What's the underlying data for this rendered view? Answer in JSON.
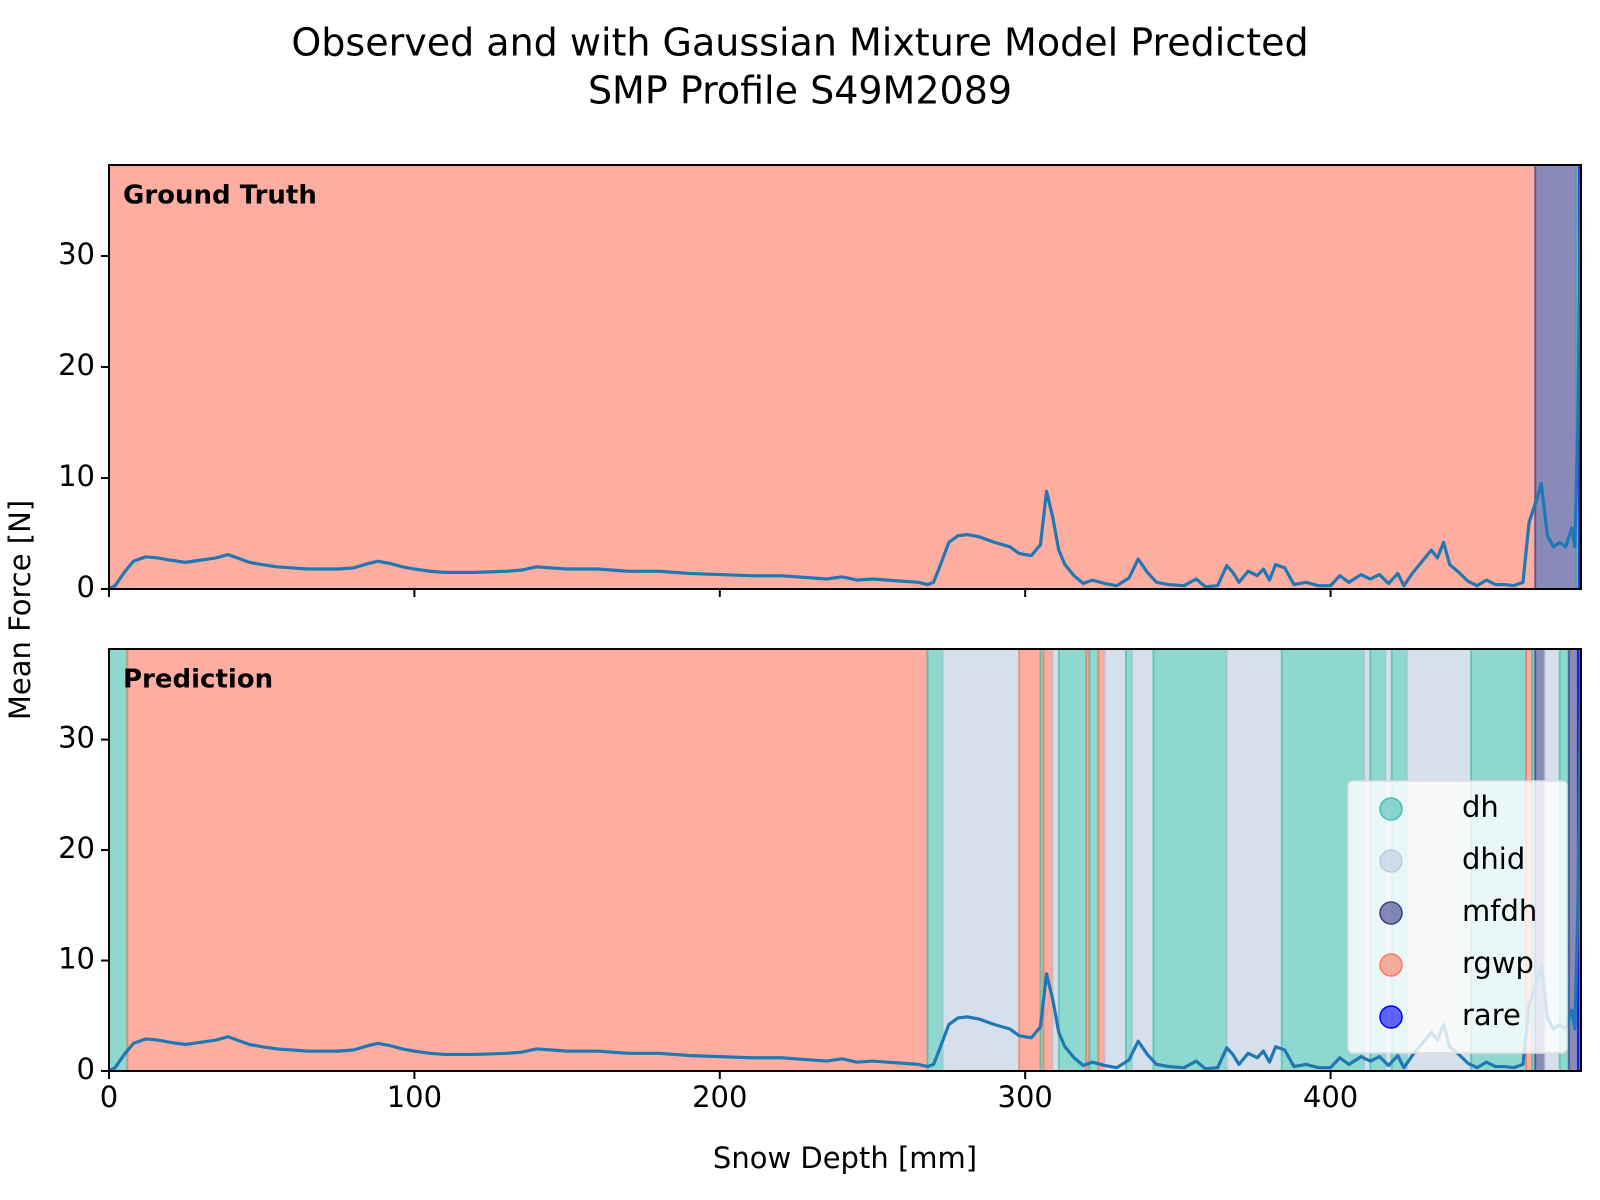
{
  "chart_data": {
    "type": "line",
    "title": "Observed and with Gaussian Mixture Model Predicted",
    "subtitle": "SMP Profile S49M2089",
    "x_label": "Snow Depth [mm]",
    "y_label": "Mean Force [N]",
    "xlim": [
      0,
      482
    ],
    "xticks": [
      0,
      100,
      200,
      300,
      400
    ],
    "ylim": [
      0,
      38.2
    ],
    "yticks": [
      0,
      10,
      20,
      30
    ],
    "legend_position": "lower right",
    "classes": [
      {
        "name": "dh",
        "color": "#44beb1"
      },
      {
        "name": "dhid",
        "color": "#bbcbdf"
      },
      {
        "name": "mfdh",
        "color": "#3c3c89"
      },
      {
        "name": "rgwp",
        "color": "#fc7861"
      },
      {
        "name": "rare",
        "color": "#0000ff"
      }
    ],
    "panels": [
      {
        "label": "Ground Truth",
        "spans": [
          {
            "class": "rgwp",
            "start": 0,
            "end": 467
          },
          {
            "class": "mfdh",
            "start": 467,
            "end": 480.5
          },
          {
            "class": "dh",
            "start": 480.5,
            "end": 481.3
          },
          {
            "class": "rare",
            "start": 481.3,
            "end": 482
          }
        ]
      },
      {
        "label": "Prediction",
        "spans": [
          {
            "class": "dh",
            "start": 0,
            "end": 6
          },
          {
            "class": "rgwp",
            "start": 6,
            "end": 268
          },
          {
            "class": "dh",
            "start": 268,
            "end": 273
          },
          {
            "class": "dhid",
            "start": 273,
            "end": 298
          },
          {
            "class": "rgwp",
            "start": 298,
            "end": 305
          },
          {
            "class": "dh",
            "start": 305,
            "end": 306
          },
          {
            "class": "rgwp",
            "start": 306,
            "end": 309
          },
          {
            "class": "dhid",
            "start": 309,
            "end": 311
          },
          {
            "class": "dh",
            "start": 311,
            "end": 320
          },
          {
            "class": "rgwp",
            "start": 320,
            "end": 321
          },
          {
            "class": "dh",
            "start": 321,
            "end": 324
          },
          {
            "class": "rgwp",
            "start": 324,
            "end": 326
          },
          {
            "class": "dhid",
            "start": 326,
            "end": 333
          },
          {
            "class": "dh",
            "start": 333,
            "end": 335
          },
          {
            "class": "dhid",
            "start": 335,
            "end": 342
          },
          {
            "class": "dh",
            "start": 342,
            "end": 366
          },
          {
            "class": "dhid",
            "start": 366,
            "end": 384
          },
          {
            "class": "dh",
            "start": 384,
            "end": 411
          },
          {
            "class": "dhid",
            "start": 411,
            "end": 413
          },
          {
            "class": "dh",
            "start": 413,
            "end": 418
          },
          {
            "class": "dhid",
            "start": 418,
            "end": 420
          },
          {
            "class": "dh",
            "start": 420,
            "end": 425
          },
          {
            "class": "dhid",
            "start": 425,
            "end": 446
          },
          {
            "class": "dh",
            "start": 446,
            "end": 464
          },
          {
            "class": "rgwp",
            "start": 464,
            "end": 466
          },
          {
            "class": "dh",
            "start": 466,
            "end": 467
          },
          {
            "class": "mfdh",
            "start": 467,
            "end": 470
          },
          {
            "class": "dhid",
            "start": 470,
            "end": 475
          },
          {
            "class": "dh",
            "start": 475,
            "end": 478
          },
          {
            "class": "mfdh",
            "start": 478,
            "end": 481
          },
          {
            "class": "rare",
            "start": 481,
            "end": 482
          }
        ]
      }
    ],
    "series": [
      {
        "color": "#1f77b4",
        "x": [
          0,
          2,
          5,
          8,
          12,
          16,
          20,
          25,
          30,
          35,
          39,
          42,
          46,
          50,
          55,
          60,
          65,
          70,
          75,
          80,
          85,
          88,
          92,
          96,
          100,
          105,
          110,
          120,
          130,
          135,
          140,
          145,
          150,
          160,
          170,
          180,
          190,
          200,
          210,
          220,
          230,
          235,
          240,
          245,
          250,
          255,
          260,
          265,
          268,
          270,
          272,
          275,
          278,
          281,
          285,
          290,
          295,
          298,
          302,
          305,
          307,
          309,
          311,
          313,
          316,
          319,
          322,
          326,
          330,
          334,
          337,
          340,
          343,
          347,
          352,
          356,
          359,
          363,
          366,
          368,
          370,
          373,
          376,
          378,
          380,
          382,
          385,
          388,
          392,
          396,
          400,
          403,
          406,
          410,
          413,
          416,
          419,
          422,
          424,
          427,
          430,
          433,
          435,
          437,
          439,
          442,
          445,
          448,
          451,
          454,
          457,
          460,
          463,
          465,
          468,
          469,
          471,
          473,
          475,
          477,
          479,
          480,
          481,
          482
        ],
        "values": [
          0,
          0.3,
          1.5,
          2.5,
          2.9,
          2.8,
          2.6,
          2.4,
          2.6,
          2.8,
          3.1,
          2.8,
          2.4,
          2.2,
          2.0,
          1.9,
          1.8,
          1.8,
          1.8,
          1.9,
          2.3,
          2.5,
          2.3,
          2.0,
          1.8,
          1.6,
          1.5,
          1.5,
          1.6,
          1.7,
          2.0,
          1.9,
          1.8,
          1.8,
          1.6,
          1.6,
          1.4,
          1.3,
          1.2,
          1.2,
          1.0,
          0.9,
          1.1,
          0.8,
          0.9,
          0.8,
          0.7,
          0.6,
          0.4,
          0.6,
          2.0,
          4.2,
          4.8,
          4.9,
          4.7,
          4.2,
          3.8,
          3.2,
          3.0,
          4.0,
          8.8,
          6.5,
          3.5,
          2.2,
          1.2,
          0.5,
          0.8,
          0.5,
          0.3,
          1.0,
          2.7,
          1.5,
          0.6,
          0.4,
          0.3,
          0.9,
          0.2,
          0.3,
          2.1,
          1.5,
          0.6,
          1.6,
          1.2,
          1.8,
          0.8,
          2.2,
          1.9,
          0.4,
          0.6,
          0.3,
          0.3,
          1.2,
          0.6,
          1.3,
          0.9,
          1.3,
          0.5,
          1.4,
          0.3,
          1.5,
          2.5,
          3.5,
          2.8,
          4.2,
          2.2,
          1.5,
          0.7,
          0.3,
          0.8,
          0.4,
          0.4,
          0.3,
          0.6,
          6.0,
          8.5,
          9.5,
          4.8,
          3.8,
          4.2,
          3.8,
          5.5,
          3.8,
          15,
          38
        ]
      }
    ]
  }
}
